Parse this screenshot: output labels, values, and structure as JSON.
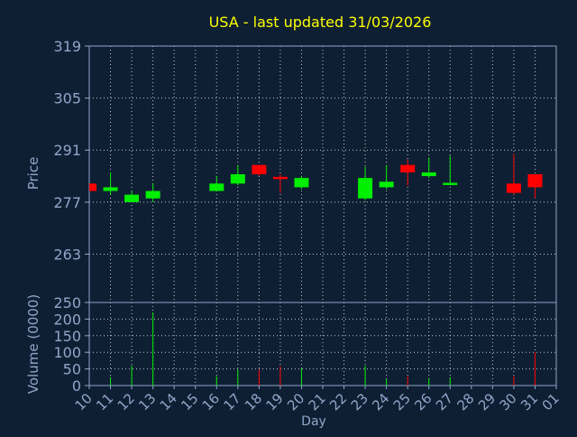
{
  "chart_data": {
    "type": "candlestick",
    "title": "USA - last updated 31/03/2026",
    "price_panel": {
      "ylabel": "Price",
      "ylim": [
        250,
        319
      ],
      "yticks": [
        "250",
        "263",
        "277",
        "291",
        "305",
        "319"
      ],
      "grid": true
    },
    "volume_panel": {
      "ylabel": "Volume (0000)",
      "ylim": [
        0,
        250
      ],
      "yticks": [
        "0",
        "50",
        "100",
        "150",
        "200",
        "250"
      ],
      "grid": true
    },
    "xlabel": "Day",
    "x_ticks": [
      "10",
      "11",
      "12",
      "13",
      "14",
      "15",
      "16",
      "17",
      "18",
      "19",
      "20",
      "21",
      "22",
      "23",
      "24",
      "25",
      "26",
      "27",
      "28",
      "29",
      "30",
      "31",
      "01"
    ],
    "candles": [
      {
        "day": "10",
        "open": 282,
        "close": 280,
        "high": 282,
        "low": 280,
        "volume": 0
      },
      {
        "day": "11",
        "open": 280,
        "close": 281,
        "high": 285,
        "low": 279,
        "volume": 25
      },
      {
        "day": "12",
        "open": 277,
        "close": 279,
        "high": 280,
        "low": 277,
        "volume": 60
      },
      {
        "day": "13",
        "open": 278,
        "close": 280,
        "high": 282,
        "low": 277,
        "volume": 220
      },
      {
        "day": "16",
        "open": 280,
        "close": 282,
        "high": 284,
        "low": 280,
        "volume": 28
      },
      {
        "day": "17",
        "open": 282,
        "close": 284.5,
        "high": 287,
        "low": 281.5,
        "volume": 48
      },
      {
        "day": "18",
        "open": 287,
        "close": 284.5,
        "high": 287,
        "low": 284,
        "volume": 48
      },
      {
        "day": "19",
        "open": 283.8,
        "close": 283.2,
        "high": 284.5,
        "low": 279.5,
        "volume": 58
      },
      {
        "day": "20",
        "open": 281,
        "close": 283.5,
        "high": 284,
        "low": 280.5,
        "volume": 52
      },
      {
        "day": "23",
        "open": 278,
        "close": 283.5,
        "high": 286.5,
        "low": 277.5,
        "volume": 60
      },
      {
        "day": "24",
        "open": 281,
        "close": 282.5,
        "high": 287,
        "low": 280.5,
        "volume": 20
      },
      {
        "day": "25",
        "open": 287,
        "close": 285,
        "high": 288.5,
        "low": 281.5,
        "volume": 28
      },
      {
        "day": "26",
        "open": 284,
        "close": 285,
        "high": 289,
        "low": 283.5,
        "volume": 22
      },
      {
        "day": "27",
        "open": 281.6,
        "close": 282.2,
        "high": 289.5,
        "low": 281.5,
        "volume": 25
      },
      {
        "day": "30",
        "open": 282,
        "close": 279.5,
        "high": 290,
        "low": 279,
        "volume": 28
      },
      {
        "day": "31",
        "open": 284.5,
        "close": 281,
        "high": 284.5,
        "low": 278,
        "volume": 100
      }
    ],
    "colors": {
      "up": "#00ee00",
      "down": "#ff0000",
      "background": "#0f1f33",
      "axis_text": "#8fa6c8",
      "title": "#ffff00",
      "grid": "#ffffff",
      "frame": "#8fa6c8"
    }
  }
}
